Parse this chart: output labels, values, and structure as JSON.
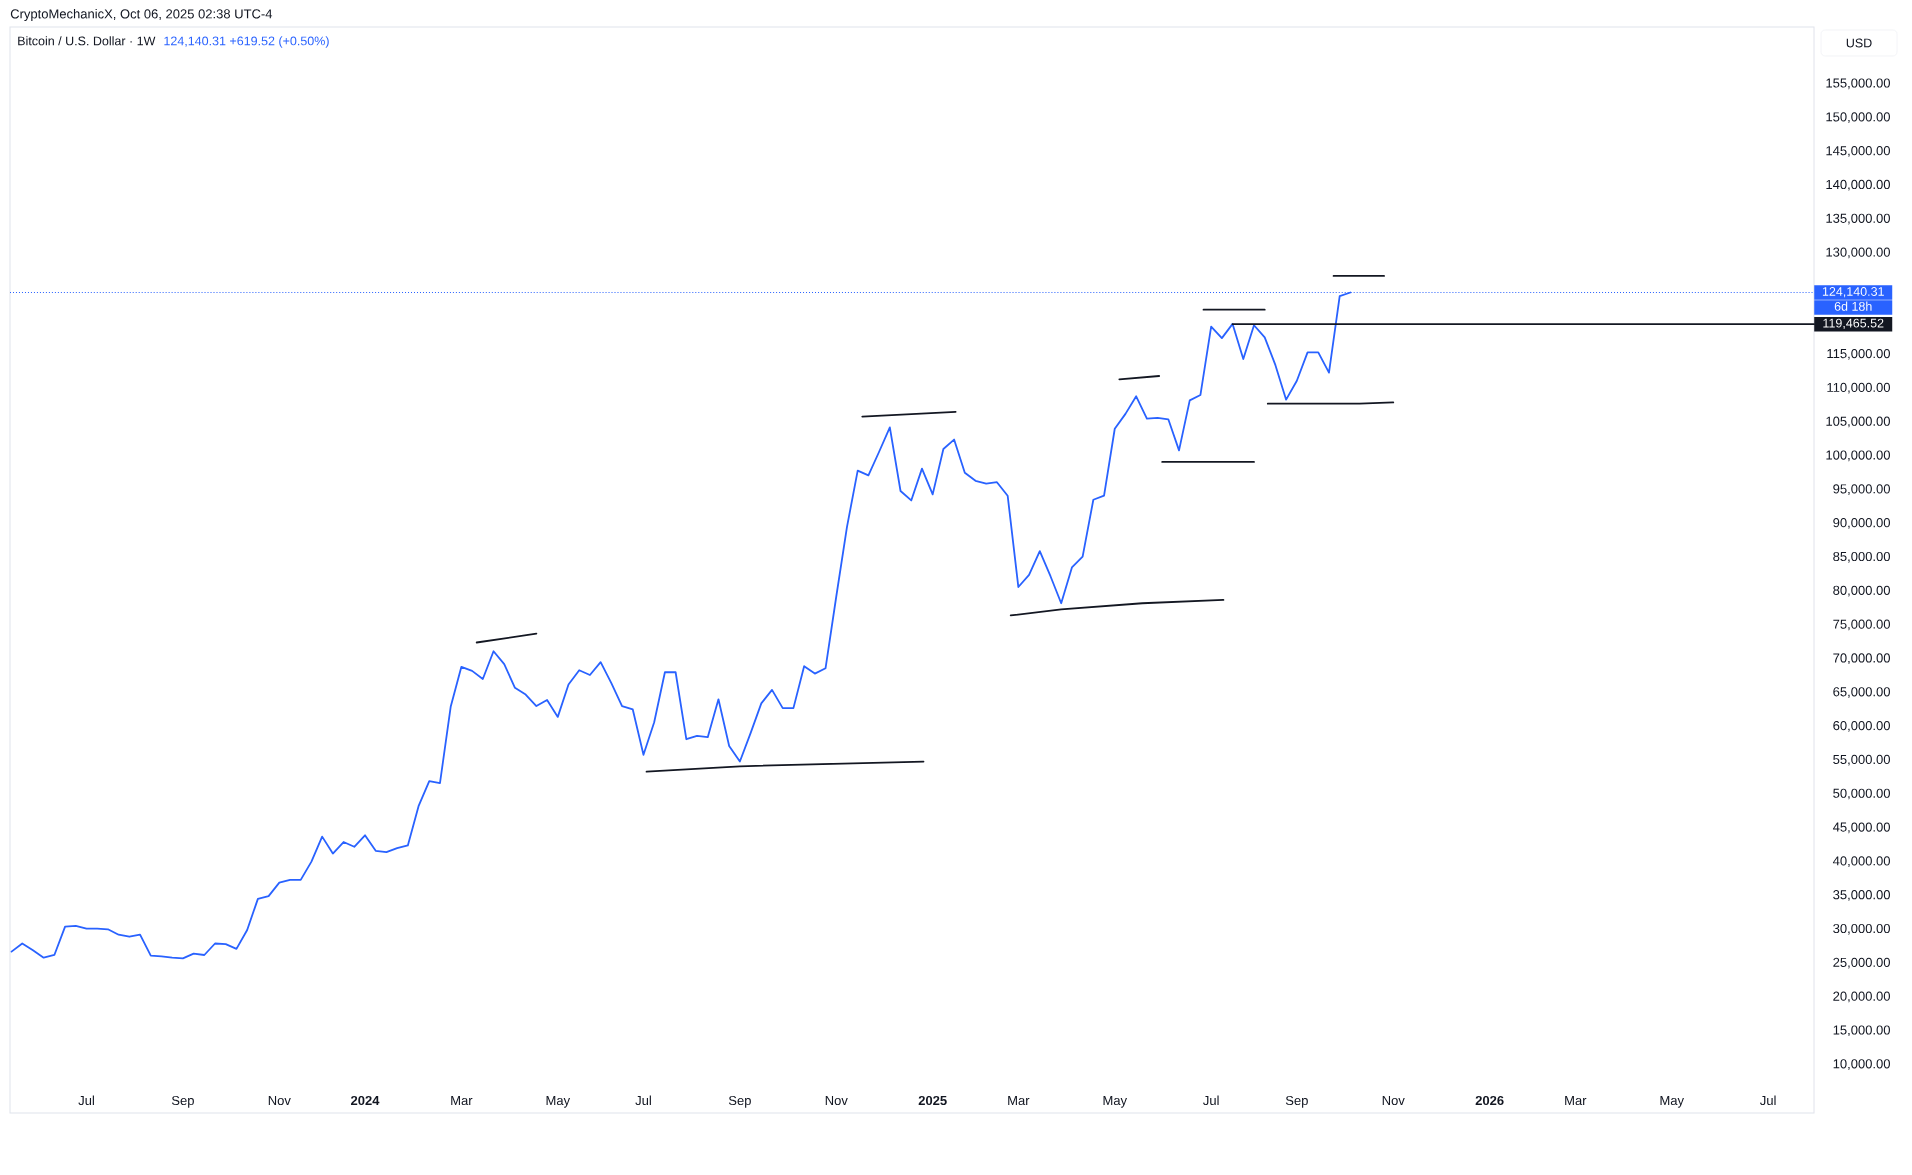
{
  "chart_data": {
    "type": "line",
    "title": "Bitcoin / U.S. Dollar · 1W",
    "subtitle": "124,140.31  +619.52 (+0.50%)",
    "annotations": [
      "CryptoMechanicX, Oct 06, 2025 02:38 UTC-4",
      "USD",
      "6d 18h",
      {
        "text": "119,465.52",
        "x": "2026-08-05",
        "y": 119465.52
      }
    ],
    "xlim": [
      "2023-05-14",
      "2026-08-05"
    ],
    "ylim": [
      2840,
      163400
    ],
    "xticks": [
      {
        "value": "2023-07-03",
        "label": "Jul"
      },
      {
        "value": "2023-09-04",
        "label": "Sep"
      },
      {
        "value": "2023-11-06",
        "label": "Nov"
      },
      {
        "value": "2024-01-01",
        "label": "**2024**"
      },
      {
        "value": "2024-03-04",
        "label": "Mar"
      },
      {
        "value": "2024-05-06",
        "label": "May"
      },
      {
        "value": "2024-07-01",
        "label": "Jul"
      },
      {
        "value": "2024-09-02",
        "label": "Sep"
      },
      {
        "value": "2024-11-04",
        "label": "Nov"
      },
      {
        "value": "2025-01-06",
        "label": "**2025**"
      },
      {
        "value": "2025-03-03",
        "label": "Mar"
      },
      {
        "value": "2025-05-05",
        "label": "May"
      },
      {
        "value": "2025-07-07",
        "label": "Jul"
      },
      {
        "value": "2025-09-01",
        "label": "Sep"
      },
      {
        "value": "2025-11-03",
        "label": "Nov"
      },
      {
        "value": "2026-01-05",
        "label": "**2026**"
      },
      {
        "value": "2026-03-02",
        "label": "Mar"
      },
      {
        "value": "2026-05-04",
        "label": "May"
      },
      {
        "value": "2026-07-06",
        "label": "Jul"
      }
    ],
    "yticks": [
      {
        "value": 10000,
        "label": "10,000.00"
      },
      {
        "value": 15000,
        "label": "15,000.00"
      },
      {
        "value": 20000,
        "label": "20,000.00"
      },
      {
        "value": 25000,
        "label": "25,000.00"
      },
      {
        "value": 30000,
        "label": "30,000.00"
      },
      {
        "value": 35000,
        "label": "35,000.00"
      },
      {
        "value": 40000,
        "label": "40,000.00"
      },
      {
        "value": 45000,
        "label": "45,000.00"
      },
      {
        "value": 50000,
        "label": "50,000.00"
      },
      {
        "value": 55000,
        "label": "55,000.00"
      },
      {
        "value": 60000,
        "label": "60,000.00"
      },
      {
        "value": 65000,
        "label": "65,000.00"
      },
      {
        "value": 70000,
        "label": "70,000.00"
      },
      {
        "value": 75000,
        "label": "75,000.00"
      },
      {
        "value": 80000,
        "label": "80,000.00"
      },
      {
        "value": 85000,
        "label": "85,000.00"
      },
      {
        "value": 90000,
        "label": "90,000.00"
      },
      {
        "value": 95000,
        "label": "95,000.00"
      },
      {
        "value": 100000,
        "label": "100,000.00"
      },
      {
        "value": 105000,
        "label": "105,000.00"
      },
      {
        "value": 110000,
        "label": "110,000.00"
      },
      {
        "value": 115000,
        "label": "115,000.00"
      },
      {
        "value": 130000,
        "label": "130,000.00"
      },
      {
        "value": 135000,
        "label": "135,000.00"
      },
      {
        "value": 140000,
        "label": "140,000.00"
      },
      {
        "value": 145000,
        "label": "145,000.00"
      },
      {
        "value": 150000,
        "label": "150,000.00"
      },
      {
        "value": 155000,
        "label": "155,000.00"
      }
    ],
    "ref_lines": [
      {
        "axis": "y",
        "value": 124140.31,
        "label": "124,140.31",
        "color": "#2962ff",
        "line_style": "dotted"
      }
    ],
    "series": [
      {
        "color": "#2962ff",
        "x": [
          "2023-05-15",
          "2023-05-22",
          "2023-05-29",
          "2023-06-05",
          "2023-06-12",
          "2023-06-19",
          "2023-06-26",
          "2023-07-03",
          "2023-07-10",
          "2023-07-17",
          "2023-07-24",
          "2023-07-31",
          "2023-08-07",
          "2023-08-14",
          "2023-08-21",
          "2023-08-28",
          "2023-09-04",
          "2023-09-11",
          "2023-09-18",
          "2023-09-25",
          "2023-10-02",
          "2023-10-09",
          "2023-10-16",
          "2023-10-23",
          "2023-10-30",
          "2023-11-06",
          "2023-11-13",
          "2023-11-20",
          "2023-11-27",
          "2023-12-04",
          "2023-12-11",
          "2023-12-18",
          "2023-12-25",
          "2024-01-01",
          "2024-01-08",
          "2024-01-15",
          "2024-01-22",
          "2024-01-29",
          "2024-02-05",
          "2024-02-12",
          "2024-02-19",
          "2024-02-26",
          "2024-03-04",
          "2024-03-11",
          "2024-03-18",
          "2024-03-25",
          "2024-04-01",
          "2024-04-08",
          "2024-04-15",
          "2024-04-22",
          "2024-04-29",
          "2024-05-06",
          "2024-05-13",
          "2024-05-20",
          "2024-05-27",
          "2024-06-03",
          "2024-06-10",
          "2024-06-17",
          "2024-06-24",
          "2024-07-01",
          "2024-07-08",
          "2024-07-15",
          "2024-07-22",
          "2024-07-29",
          "2024-08-05",
          "2024-08-12",
          "2024-08-19",
          "2024-08-26",
          "2024-09-02",
          "2024-09-09",
          "2024-09-16",
          "2024-09-23",
          "2024-09-30",
          "2024-10-07",
          "2024-10-14",
          "2024-10-21",
          "2024-10-28",
          "2024-11-04",
          "2024-11-11",
          "2024-11-18",
          "2024-11-25",
          "2024-12-02",
          "2024-12-09",
          "2024-12-16",
          "2024-12-23",
          "2024-12-30",
          "2025-01-06",
          "2025-01-13",
          "2025-01-20",
          "2025-01-27",
          "2025-02-03",
          "2025-02-10",
          "2025-02-17",
          "2025-02-24",
          "2025-03-03",
          "2025-03-10",
          "2025-03-17",
          "2025-03-24",
          "2025-03-31",
          "2025-04-07",
          "2025-04-14",
          "2025-04-21",
          "2025-04-28",
          "2025-05-05",
          "2025-05-12",
          "2025-05-19",
          "2025-05-26",
          "2025-06-02",
          "2025-06-09",
          "2025-06-16",
          "2025-06-23",
          "2025-06-30",
          "2025-07-07",
          "2025-07-14",
          "2025-07-21",
          "2025-07-28",
          "2025-08-04",
          "2025-08-11",
          "2025-08-18",
          "2025-08-25",
          "2025-09-01",
          "2025-09-08",
          "2025-09-15",
          "2025-09-22",
          "2025-09-29",
          "2025-10-06"
        ],
        "values": [
          26700,
          27900,
          26900,
          25800,
          26200,
          30400,
          30500,
          30100,
          30100,
          30000,
          29200,
          28900,
          29200,
          26100,
          26000,
          25800,
          25700,
          26400,
          26200,
          27900,
          27800,
          27100,
          29900,
          34500,
          34900,
          36900,
          37300,
          37300,
          40000,
          43700,
          41200,
          42900,
          42200,
          43900,
          41600,
          41400,
          42000,
          42400,
          48200,
          51900,
          51600,
          62900,
          68800,
          68200,
          67000,
          71100,
          69200,
          65700,
          64700,
          63000,
          63900,
          61400,
          66200,
          68300,
          67600,
          69500,
          66400,
          63000,
          62500,
          55800,
          60600,
          68000,
          68000,
          58100,
          58600,
          58400,
          64000,
          57100,
          54800,
          59000,
          63400,
          65400,
          62700,
          62700,
          68900,
          67800,
          68600,
          79200,
          89500,
          97800,
          97100,
          100600,
          104200,
          94800,
          93400,
          98100,
          94300,
          101000,
          102400,
          97500,
          96300,
          95900,
          96100,
          94100,
          80600,
          82400,
          85900,
          82200,
          78200,
          83500,
          85100,
          93500,
          94100,
          104000,
          106200,
          108800,
          105500,
          105600,
          105400,
          100800,
          108200,
          109000,
          119100,
          117400,
          119500,
          114300,
          119300,
          117500,
          113400,
          108300,
          111100,
          115300,
          115300,
          112300,
          123600,
          124140.31
        ]
      },
      {
        "color": "#131722",
        "x": [
          "2024-03-14",
          "2024-04-22"
        ],
        "values": [
          72400,
          73700
        ]
      },
      {
        "color": "#131722",
        "x": [
          "2024-07-03",
          "2024-09-02",
          "2024-12-31"
        ],
        "values": [
          53300,
          54100,
          54800
        ]
      },
      {
        "color": "#131722",
        "x": [
          "2024-11-21",
          "2025-01-21"
        ],
        "values": [
          105800,
          106500
        ]
      },
      {
        "color": "#131722",
        "x": [
          "2025-02-26",
          "2025-03-31",
          "2025-05-23",
          "2025-07-15"
        ],
        "values": [
          76400,
          77300,
          78200,
          78700
        ]
      },
      {
        "color": "#131722",
        "x": [
          "2025-05-08",
          "2025-06-03"
        ],
        "values": [
          111300,
          111800
        ]
      },
      {
        "color": "#131722",
        "x": [
          "2025-06-05",
          "2025-08-04"
        ],
        "values": [
          99100,
          99100
        ]
      },
      {
        "color": "#131722",
        "x": [
          "2025-07-02",
          "2025-08-11"
        ],
        "values": [
          121600,
          121600
        ]
      },
      {
        "color": "#131722",
        "x": [
          "2025-08-13",
          "2025-10-12",
          "2025-11-03"
        ],
        "values": [
          107700,
          107700,
          107900
        ]
      },
      {
        "color": "#131722",
        "x": [
          "2025-09-25",
          "2025-10-28"
        ],
        "values": [
          126600,
          126600
        ]
      },
      {
        "color": "#131722",
        "x": [
          "2025-07-21",
          "2026-08-05"
        ],
        "values": [
          119465.52,
          119465.52
        ]
      }
    ]
  }
}
